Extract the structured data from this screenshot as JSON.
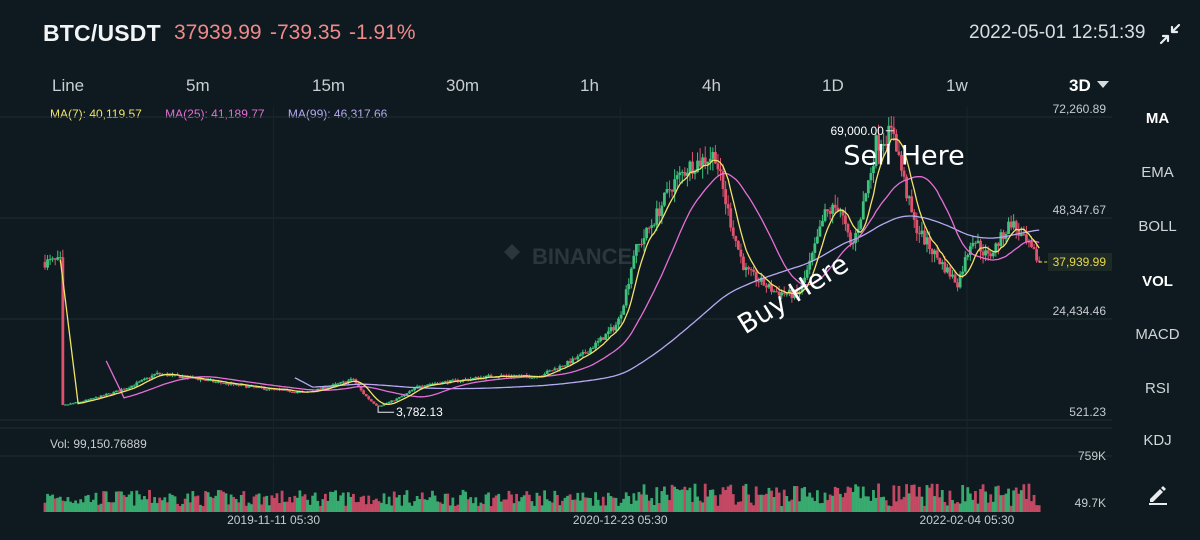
{
  "header": {
    "pair": "BTC/USDT",
    "price": "37939.99",
    "change": "-739.35",
    "change_pct": "-1.91%",
    "datetime": "2022-05-01 12:51:39",
    "collapse_icon": "collapse-arrows-icon"
  },
  "tabs": [
    {
      "label": "Line"
    },
    {
      "label": "5m"
    },
    {
      "label": "15m"
    },
    {
      "label": "30m"
    },
    {
      "label": "1h"
    },
    {
      "label": "4h"
    },
    {
      "label": "1D"
    },
    {
      "label": "1w"
    },
    {
      "label": "3D",
      "active": true
    }
  ],
  "ma_legend": {
    "ma7": "MA(7): 40,119.57",
    "ma25": "MA(25): 41,189.77",
    "ma99": "MA(99): 46,317.66"
  },
  "side_menu": [
    "MA",
    "EMA",
    "BOLL",
    "VOL",
    "MACD",
    "RSI",
    "KDJ"
  ],
  "side_active": [
    "MA",
    "VOL"
  ],
  "edit_icon": "pencil-draw-icon",
  "colors": {
    "background": "#0e1a1f",
    "up": "#3ec27d",
    "down": "#e0516e",
    "ma7": "#f3e36b",
    "ma25": "#e66fd6",
    "ma99": "#b7a9f2",
    "current_price": "#e9d84a"
  },
  "chart_data": {
    "type": "candlestick",
    "watermark": "BINANCE",
    "price_axis_ticks": [
      "72,260.89",
      "48,347.67",
      "24,434.46",
      "521.23"
    ],
    "price_axis_values": [
      72260.89,
      48347.67,
      24434.46,
      521.23
    ],
    "current_price_label": "37,939.99",
    "current_price": 37939.99,
    "high_marker": {
      "label": "69,000.00",
      "value": 69000,
      "date": "2021-11-10"
    },
    "low_marker": {
      "label": "3,782.13",
      "value": 3782.13,
      "date": "2020-03-13"
    },
    "x_tick_labels": [
      "2019-11-11 05:30",
      "2020-12-23 05:30",
      "2022-02-04 05:30"
    ],
    "x_tick_dates": [
      "2019-11-11",
      "2020-12-23",
      "2022-02-04"
    ],
    "annotations": [
      {
        "text": "Sell Here",
        "date": "2021-11-22",
        "value": 61000
      },
      {
        "text": "Buy Here",
        "date": "2021-07-20",
        "value": 28500,
        "rotation_deg": -32
      }
    ],
    "volume_label": "Vol: 99,150.76889",
    "volume_axis_ticks": [
      "759K",
      "49.7K"
    ],
    "volume_axis_values": [
      759000,
      49700
    ],
    "price_keypoints": [
      [
        "2019-03-06",
        3900
      ],
      [
        "2019-05-20",
        8000
      ],
      [
        "2019-06-26",
        11500
      ],
      [
        "2019-08-15",
        10200
      ],
      [
        "2019-10-24",
        8100
      ],
      [
        "2019-12-18",
        7000
      ],
      [
        "2020-02-13",
        10200
      ],
      [
        "2020-03-13",
        3782.13
      ],
      [
        "2020-05-01",
        8800
      ],
      [
        "2020-07-27",
        11000
      ],
      [
        "2020-09-15",
        10800
      ],
      [
        "2020-11-05",
        15500
      ],
      [
        "2020-12-20",
        23500
      ],
      [
        "2021-01-08",
        40000
      ],
      [
        "2021-02-21",
        56000
      ],
      [
        "2021-03-13",
        60500
      ],
      [
        "2021-04-14",
        63500
      ],
      [
        "2021-05-19",
        36000
      ],
      [
        "2021-06-22",
        31000
      ],
      [
        "2021-07-20",
        30000
      ],
      [
        "2021-08-20",
        49000
      ],
      [
        "2021-09-07",
        51500
      ],
      [
        "2021-09-21",
        41000
      ],
      [
        "2021-10-20",
        66000
      ],
      [
        "2021-11-10",
        69000
      ],
      [
        "2021-12-04",
        47000
      ],
      [
        "2022-01-24",
        33000
      ],
      [
        "2022-02-10",
        44000
      ],
      [
        "2022-03-01",
        39000
      ],
      [
        "2022-03-28",
        47500
      ],
      [
        "2022-05-01",
        37939.99
      ]
    ],
    "x_range": [
      "2019-02-15",
      "2022-05-01"
    ],
    "price_range": [
      521.23,
      72260.89
    ],
    "volume_max": 759000
  }
}
